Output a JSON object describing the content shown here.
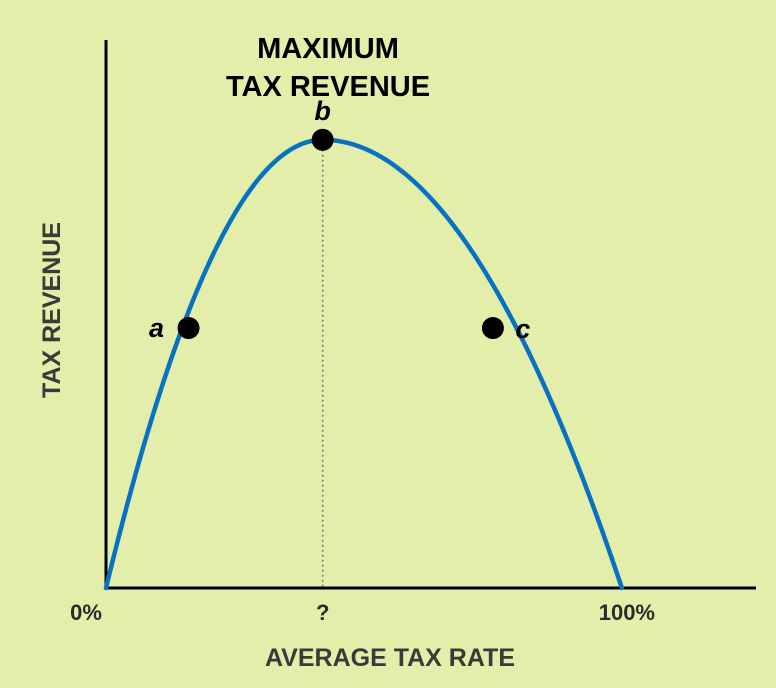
{
  "chart_data": {
    "type": "line",
    "title_lines": [
      "MAXIMUM",
      "TAX REVENUE"
    ],
    "xlabel": "AVERAGE TAX RATE",
    "ylabel": "TAX REVENUE",
    "x_tick_labels": [
      {
        "x": 0,
        "label": "0%"
      },
      {
        "x": 42,
        "label": "?"
      },
      {
        "x": 100,
        "label": "100%"
      }
    ],
    "xlim": [
      0,
      126
    ],
    "ylim": [
      0,
      112
    ],
    "peak": {
      "x": 42,
      "y": 100
    },
    "points": [
      {
        "label": "a",
        "x": 16,
        "y": 58
      },
      {
        "label": "b",
        "x": 42,
        "y": 100
      },
      {
        "label": "c",
        "x": 75,
        "y": 58
      }
    ],
    "curve_color": "#0872C2",
    "point_color": "#000000"
  }
}
